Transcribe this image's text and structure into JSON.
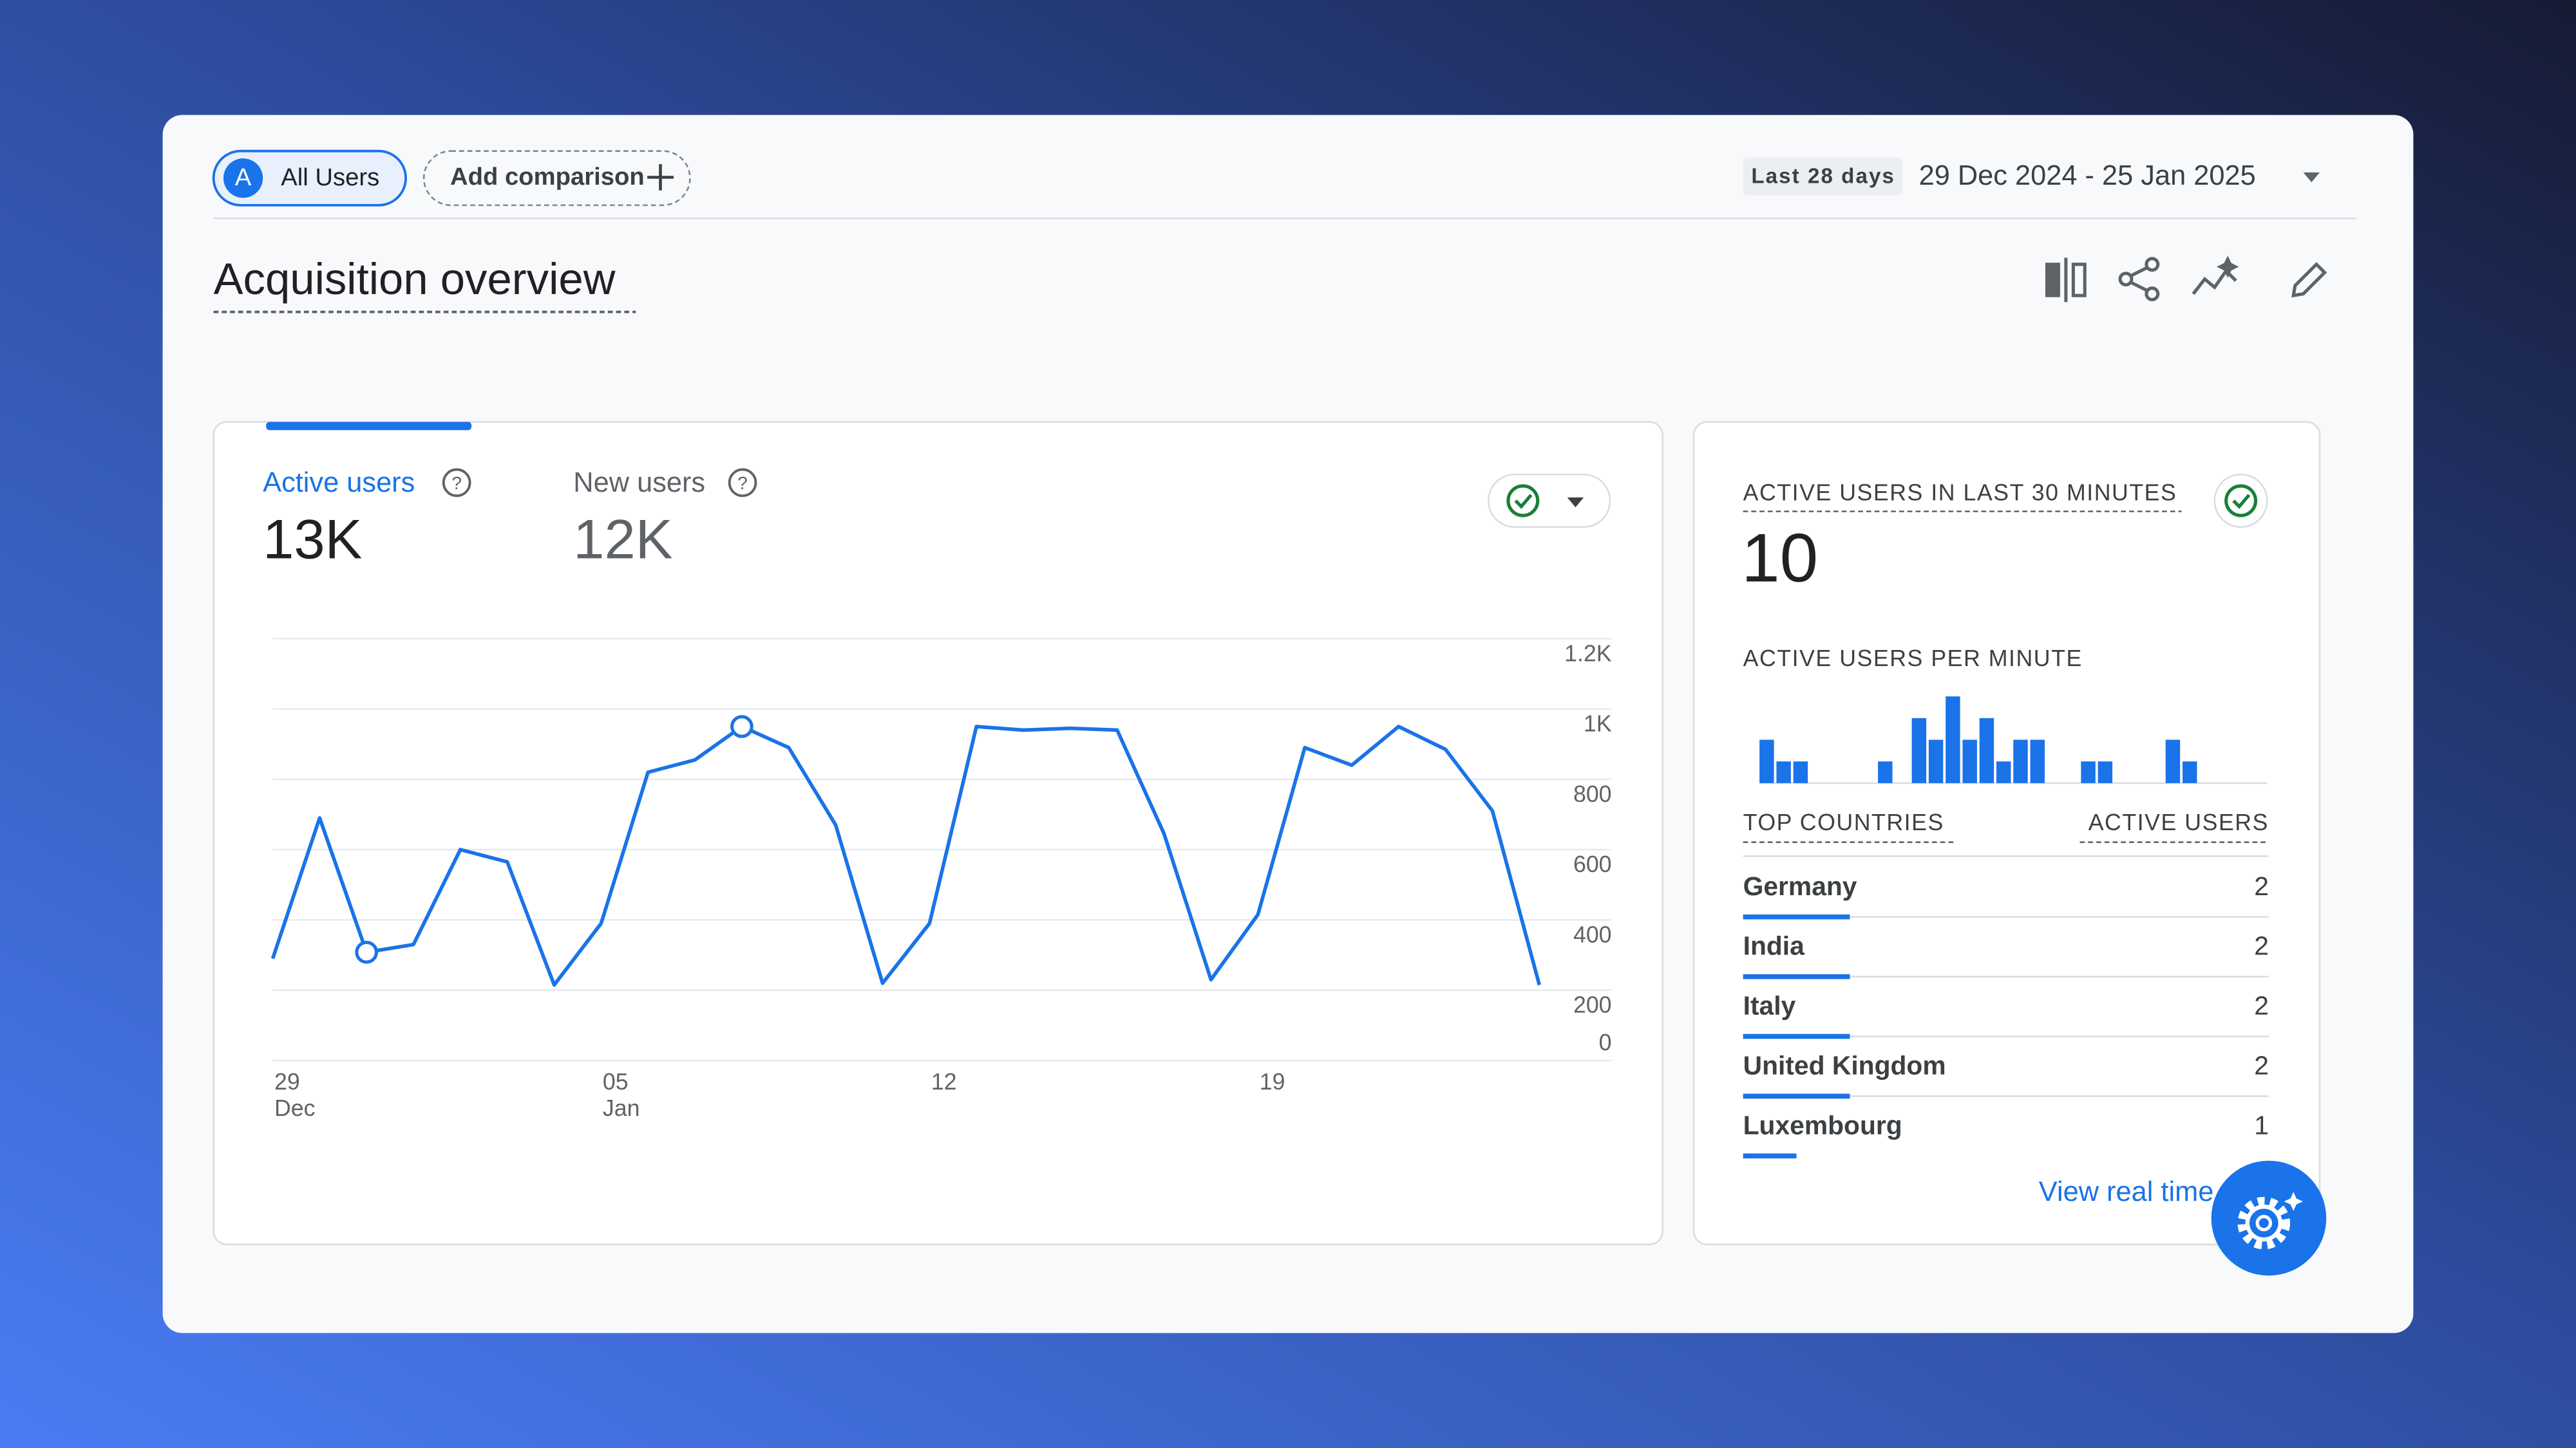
{
  "header": {
    "segment_badge": "A",
    "segment": "All Users",
    "add_comparison": "Add comparison",
    "date_range_label": "Last 28 days",
    "date_range": "29 Dec 2024 - 25 Jan 2025"
  },
  "title": "Acquisition overview",
  "metrics": [
    {
      "label": "Active users",
      "value": "13K"
    },
    {
      "label": "New users",
      "value": "12K"
    }
  ],
  "line_chart": {
    "type": "line",
    "categories": [
      "29",
      null,
      null,
      null,
      null,
      null,
      null,
      "05",
      null,
      null,
      null,
      null,
      null,
      null,
      "12",
      null,
      null,
      null,
      null,
      null,
      null,
      "19",
      null,
      null,
      null,
      null,
      null,
      null
    ],
    "months": [
      "Dec",
      null,
      null,
      null,
      null,
      null,
      null,
      "Jan",
      null,
      null,
      null,
      null,
      null,
      null,
      null,
      null,
      null,
      null,
      null,
      null,
      null,
      null,
      null,
      null,
      null,
      null,
      null,
      null
    ],
    "values": [
      290,
      690,
      308,
      330,
      600,
      565,
      215,
      390,
      820,
      855,
      950,
      890,
      670,
      220,
      390,
      950,
      940,
      945,
      940,
      645,
      230,
      415,
      890,
      840,
      950,
      885,
      710,
      215
    ],
    "color": "#1a73e8",
    "markers": [
      2,
      10
    ],
    "ylim": [
      0,
      1200
    ],
    "yticks": [
      0,
      200,
      400,
      600,
      800,
      {
        "value": 1000,
        "label": "1K"
      },
      {
        "value": 1200,
        "label": "1.2K"
      }
    ],
    "grid": true
  },
  "realtime": {
    "title": "ACTIVE USERS IN LAST 30 MINUTES",
    "value": "10",
    "per_minute_label": "ACTIVE USERS PER MINUTE",
    "per_minute": {
      "type": "bar",
      "values": [
        2,
        1,
        1,
        0,
        0,
        0,
        0,
        1,
        0,
        3,
        2,
        4,
        2,
        3,
        1,
        2,
        2,
        0,
        0,
        1,
        1,
        0,
        0,
        0,
        2,
        1,
        0,
        0,
        0,
        0
      ],
      "color": "#1a73e8"
    },
    "table": {
      "columns": [
        "TOP COUNTRIES",
        "ACTIVE USERS"
      ],
      "rows": [
        [
          "Germany",
          2
        ],
        [
          "India",
          2
        ],
        [
          "Italy",
          2
        ],
        [
          "United Kingdom",
          2
        ],
        [
          "Luxembourg",
          1
        ]
      ]
    },
    "link": "View real time"
  }
}
